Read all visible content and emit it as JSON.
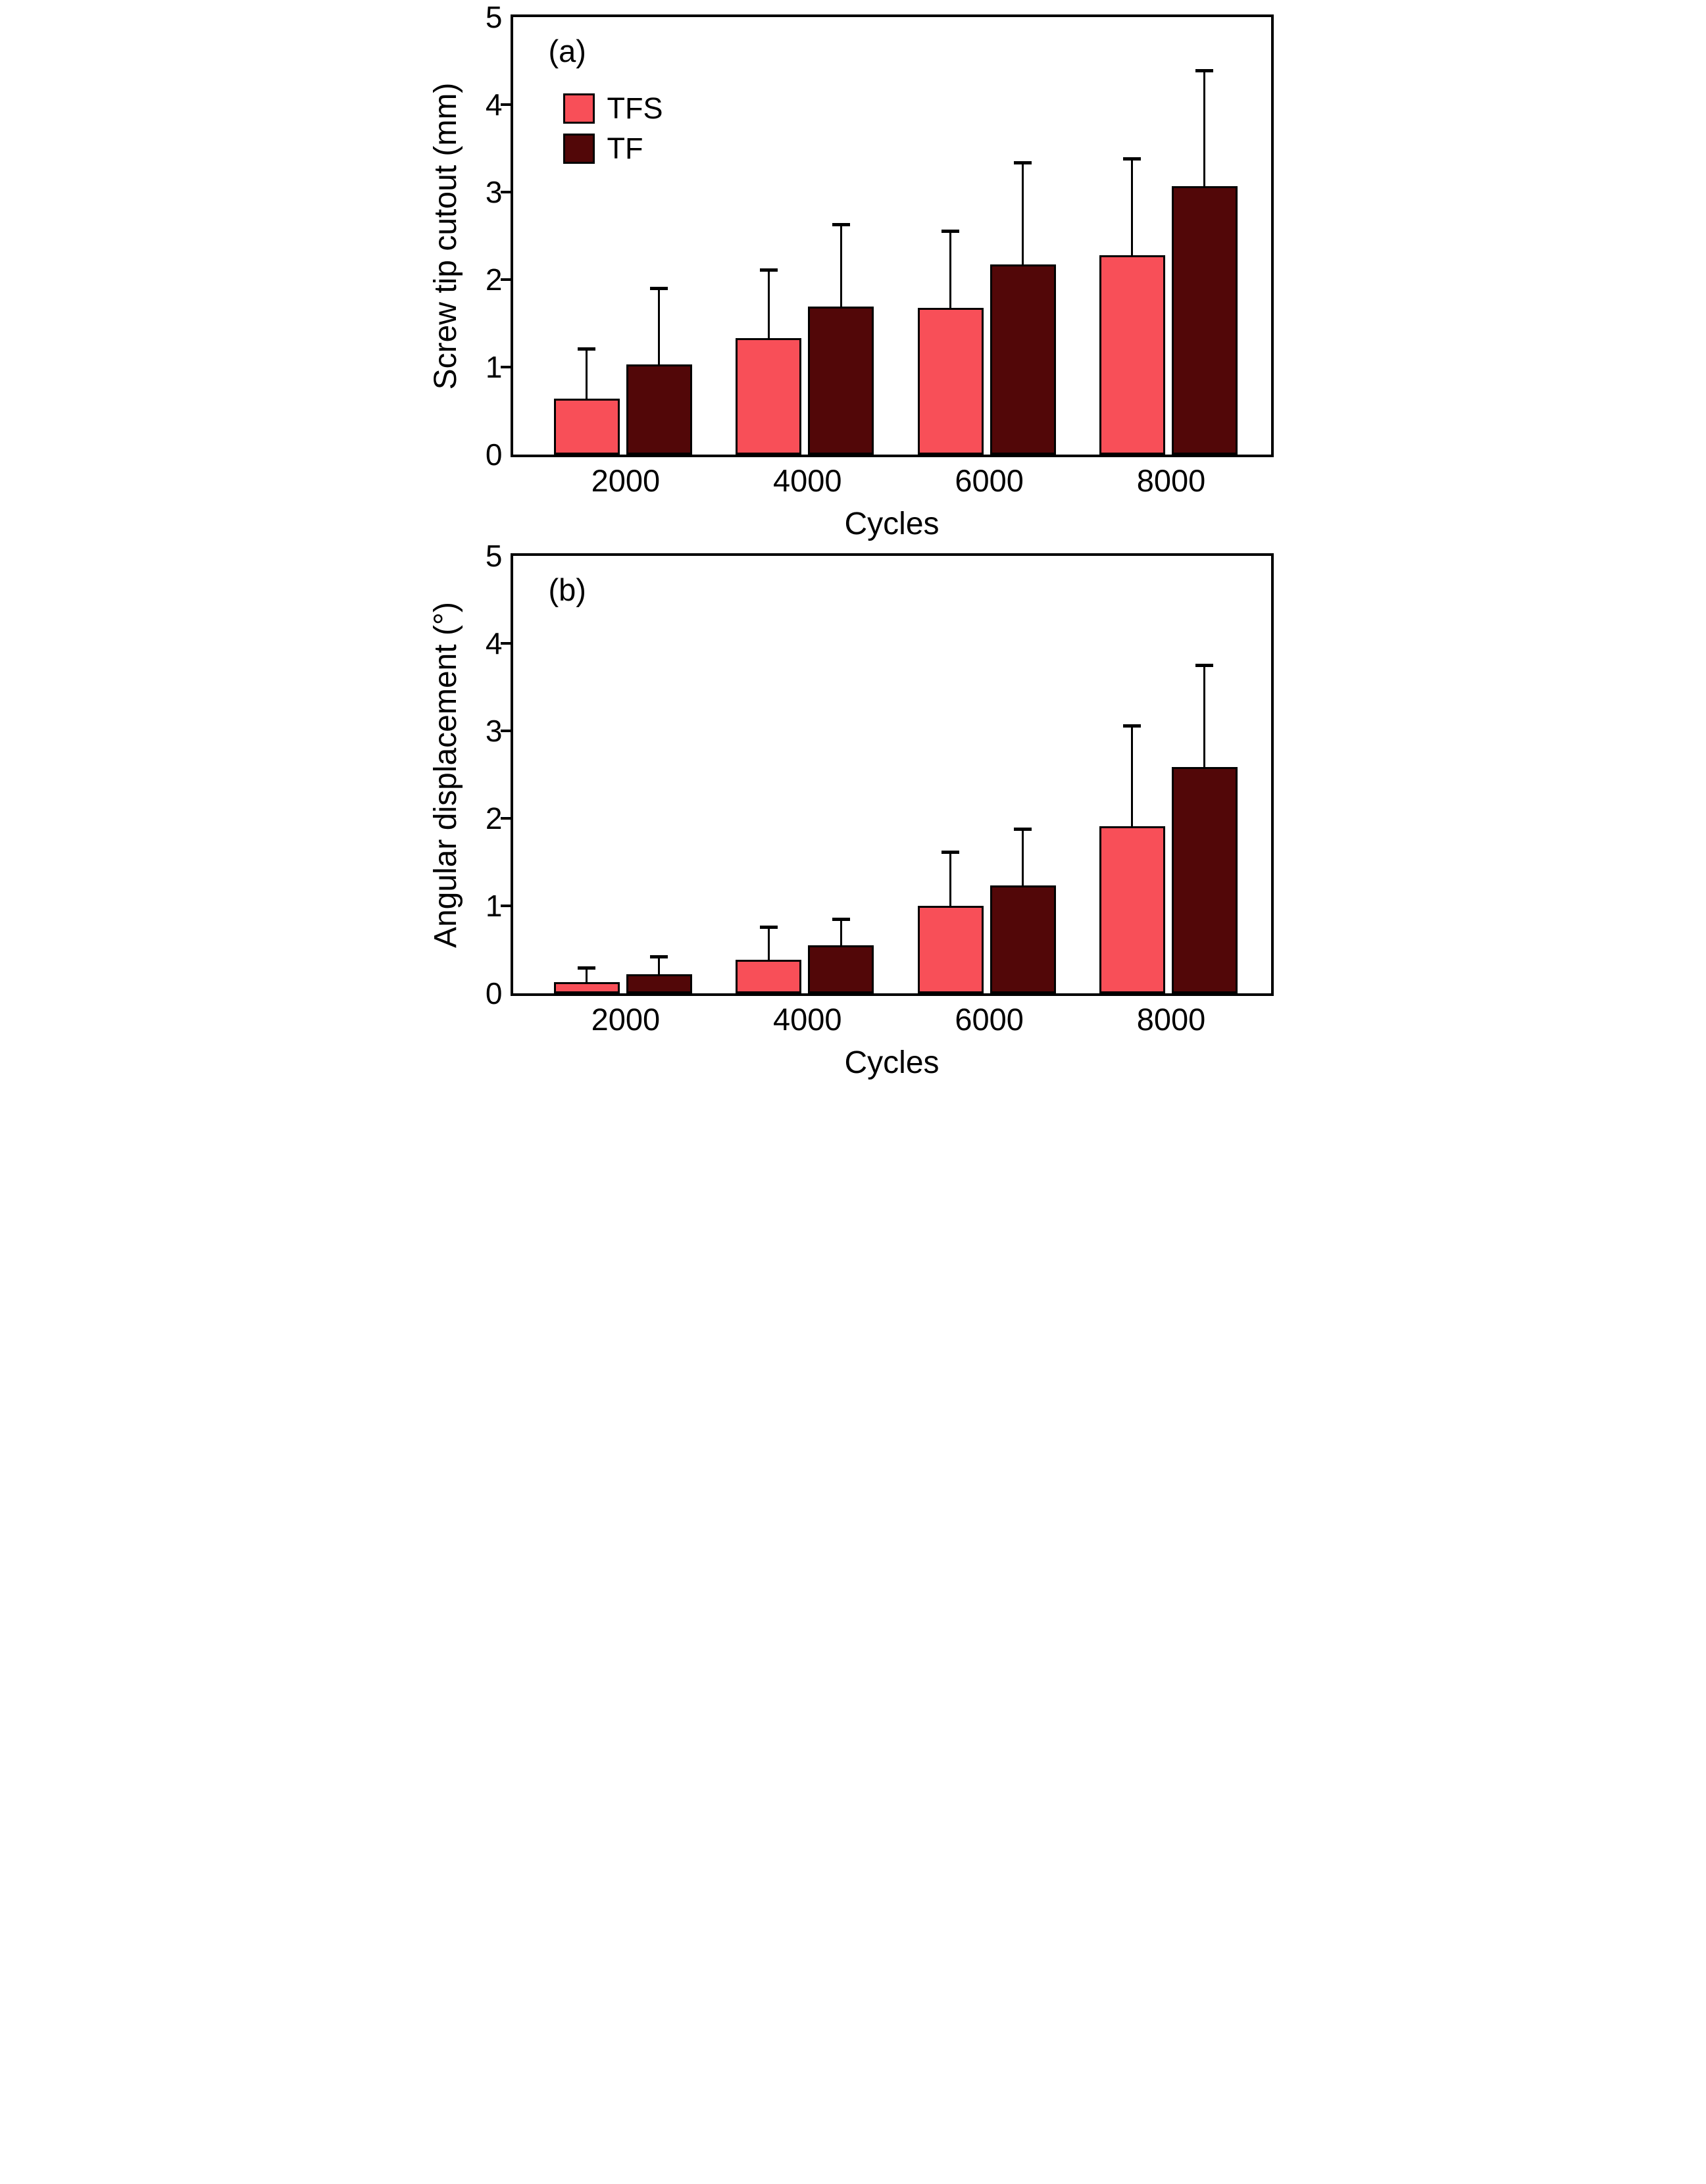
{
  "page": {
    "background": "#ffffff",
    "text_color": "#000000",
    "frame_color": "#000000"
  },
  "chart_data": [
    {
      "type": "bar",
      "panel_tag": "(a)",
      "ylabel": "Screw tip cutout (mm)",
      "xlabel": "Cycles",
      "categories": [
        "2000",
        "4000",
        "6000",
        "8000"
      ],
      "ylim": [
        0,
        5
      ],
      "yticks": [
        0,
        1,
        2,
        3,
        4,
        5
      ],
      "grid": false,
      "error_bars": "upper",
      "legend": {
        "position": "upper-left",
        "entries": [
          "TFS",
          "TF"
        ]
      },
      "series": [
        {
          "name": "TFS",
          "color": "#F84F58",
          "values": [
            0.64,
            1.33,
            1.68,
            2.28
          ],
          "error_plus": [
            0.57,
            0.78,
            0.88,
            1.1
          ]
        },
        {
          "name": "TF",
          "color": "#520708",
          "values": [
            1.03,
            1.69,
            2.17,
            3.07
          ],
          "error_plus": [
            0.87,
            0.94,
            1.17,
            1.32
          ]
        }
      ]
    },
    {
      "type": "bar",
      "panel_tag": "(b)",
      "ylabel": "Angular displacement (°)",
      "xlabel": "Cycles",
      "categories": [
        "2000",
        "4000",
        "6000",
        "8000"
      ],
      "ylim": [
        0,
        5
      ],
      "yticks": [
        0,
        1,
        2,
        3,
        4,
        5
      ],
      "grid": false,
      "error_bars": "upper",
      "legend": null,
      "series": [
        {
          "name": "TFS",
          "color": "#F84F58",
          "values": [
            0.13,
            0.38,
            1.0,
            1.91
          ],
          "error_plus": [
            0.16,
            0.38,
            0.62,
            1.15
          ]
        },
        {
          "name": "TF",
          "color": "#520708",
          "values": [
            0.22,
            0.55,
            1.23,
            2.59
          ],
          "error_plus": [
            0.2,
            0.3,
            0.65,
            1.16
          ]
        }
      ]
    }
  ]
}
